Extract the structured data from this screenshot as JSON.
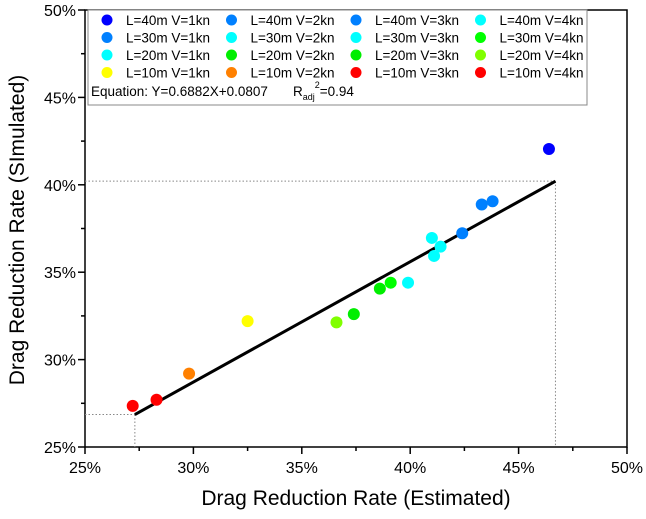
{
  "chart_data": {
    "type": "scatter",
    "xlabel": "Drag Reduction Rate (Estimated)",
    "ylabel": "Drag Reduction Rate (SImulated)",
    "xlim": [
      25,
      50
    ],
    "ylim": [
      25,
      50
    ],
    "x_ticks": [
      "25%",
      "30%",
      "35%",
      "40%",
      "45%",
      "50%"
    ],
    "y_ticks": [
      "25%",
      "30%",
      "35%",
      "40%",
      "45%",
      "50%"
    ],
    "x_tick_values": [
      25,
      30,
      35,
      40,
      45,
      50
    ],
    "y_tick_values": [
      25,
      30,
      35,
      40,
      45,
      50
    ],
    "grid": false,
    "legend_placement": "top",
    "series": [
      {
        "name": "L=40m V=1kn",
        "color": "#0000ff",
        "x": 46.4,
        "y": 42.05
      },
      {
        "name": "L=40m V=2kn",
        "color": "#0080ff",
        "x": 43.8,
        "y": 39.06
      },
      {
        "name": "L=40m V=3kn",
        "color": "#0080ff",
        "x": 42.4,
        "y": 37.23
      },
      {
        "name": "L=40m V=4kn",
        "color": "#00ffff",
        "x": 41.0,
        "y": 36.96
      },
      {
        "name": "L=30m V=1kn",
        "color": "#0080ff",
        "x": 43.3,
        "y": 38.87
      },
      {
        "name": "L=30m V=2kn",
        "color": "#00ffff",
        "x": 41.4,
        "y": 36.46
      },
      {
        "name": "L=30m V=3kn",
        "color": "#00ffff",
        "x": 41.1,
        "y": 35.93
      },
      {
        "name": "L=30m V=4kn",
        "color": "#00ff00",
        "x": 39.1,
        "y": 34.4
      },
      {
        "name": "L=20m V=1kn",
        "color": "#00ffff",
        "x": 39.9,
        "y": 34.4
      },
      {
        "name": "L=20m V=2kn",
        "color": "#00ee00",
        "x": 38.6,
        "y": 34.06
      },
      {
        "name": "L=20m V=3kn",
        "color": "#00ee00",
        "x": 37.4,
        "y": 32.6
      },
      {
        "name": "L=20m V=4kn",
        "color": "#80ff00",
        "x": 36.6,
        "y": 32.13
      },
      {
        "name": "L=10m V=1kn",
        "color": "#ffff00",
        "x": 32.5,
        "y": 32.2
      },
      {
        "name": "L=10m V=2kn",
        "color": "#ff8000",
        "x": 29.8,
        "y": 29.2
      },
      {
        "name": "L=10m V=3kn",
        "color": "#ff0000",
        "x": 28.3,
        "y": 27.7
      },
      {
        "name": "L=10m V=4kn",
        "color": "#ff0000",
        "x": 27.2,
        "y": 27.35
      }
    ],
    "fit_line": {
      "slope": 0.6882,
      "intercept": 0.0807,
      "x_range": [
        27.3,
        46.7
      ],
      "color": "#000000"
    },
    "equation_label": "Equation: Y=0.6882X+0.0807",
    "r2_label_main": "R",
    "r2_label_sub": "adj",
    "r2_label_sup": "2",
    "r2_label_value": "=0.94"
  }
}
